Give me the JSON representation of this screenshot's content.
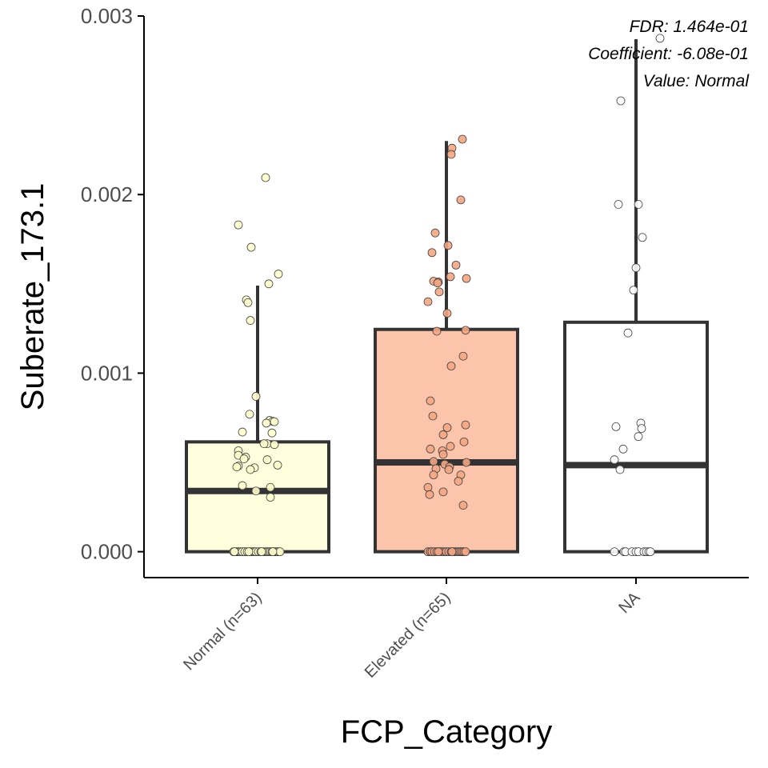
{
  "chart_data": {
    "type": "box",
    "xlabel": "FCP_Category",
    "ylabel": "Suberate_173.1",
    "ylim": [
      -0.000145,
      0.003
    ],
    "y_ticks": [
      "0.000",
      "0.001",
      "0.002",
      "0.003"
    ],
    "y_tick_values": [
      0,
      0.001,
      0.002,
      0.003
    ],
    "annotations": [
      "FDR: 1.464e-01",
      "Coefficient: -6.08e-01",
      "Value: Normal"
    ],
    "colors": {
      "axis": "#000000",
      "box_stroke": "#333333",
      "point_stroke": "#404040"
    },
    "categories": [
      {
        "label": "Normal (n=63)",
        "fill": "#ffffdd",
        "point_fill": "#ffffcc",
        "q1": 0,
        "median": 0.00034,
        "q3": 0.000615,
        "whisker_low": 0,
        "whisker_high": 0.00149,
        "points": [
          {
            "x": 0.1,
            "y": 0.002095
          },
          {
            "x": -0.24,
            "y": 0.00183
          },
          {
            "x": -0.08,
            "y": 0.001705
          },
          {
            "x": 0.26,
            "y": 0.001555
          },
          {
            "x": 0.14,
            "y": 0.0015
          },
          {
            "x": -0.14,
            "y": 0.00141
          },
          {
            "x": -0.12,
            "y": 0.001395
          },
          {
            "x": -0.09,
            "y": 0.001295
          },
          {
            "x": -0.02,
            "y": 0.00087
          },
          {
            "x": -0.1,
            "y": 0.00077
          },
          {
            "x": 0.15,
            "y": 0.000735
          },
          {
            "x": 0.19,
            "y": 0.00073
          },
          {
            "x": 0.21,
            "y": 0.000728
          },
          {
            "x": 0.11,
            "y": 0.00072
          },
          {
            "x": -0.19,
            "y": 0.00067
          },
          {
            "x": 0.18,
            "y": 0.000665
          },
          {
            "x": 0.12,
            "y": 0.000605
          },
          {
            "x": 0.08,
            "y": 0.000605
          },
          {
            "x": 0.21,
            "y": 0.0006
          },
          {
            "x": -0.24,
            "y": 0.000565
          },
          {
            "x": -0.24,
            "y": 0.00054
          },
          {
            "x": -0.15,
            "y": 0.00053
          },
          {
            "x": -0.17,
            "y": 0.00052
          },
          {
            "x": 0.12,
            "y": 0.000515
          },
          {
            "x": 0.25,
            "y": 0.000485
          },
          {
            "x": -0.24,
            "y": 0.00048
          },
          {
            "x": -0.26,
            "y": 0.000475
          },
          {
            "x": -0.04,
            "y": 0.00047
          },
          {
            "x": -0.09,
            "y": 0.00046
          },
          {
            "x": -0.19,
            "y": 0.00037
          },
          {
            "x": 0.16,
            "y": 0.00036
          },
          {
            "x": -0.02,
            "y": 0.00034
          },
          {
            "x": 0.16,
            "y": 0.000305
          },
          {
            "x": -0.3,
            "y": 0
          },
          {
            "x": -0.27,
            "y": 0
          },
          {
            "x": -0.25,
            "y": 0
          },
          {
            "x": -0.23,
            "y": 0
          },
          {
            "x": -0.21,
            "y": 0
          },
          {
            "x": -0.19,
            "y": 0
          },
          {
            "x": -0.16,
            "y": 0
          },
          {
            "x": -0.13,
            "y": 0
          },
          {
            "x": -0.1,
            "y": 0
          },
          {
            "x": -0.08,
            "y": 0
          },
          {
            "x": -0.06,
            "y": 0
          },
          {
            "x": -0.04,
            "y": 0
          },
          {
            "x": -0.02,
            "y": 0
          },
          {
            "x": 0.01,
            "y": 0
          },
          {
            "x": 0.04,
            "y": 0
          },
          {
            "x": 0.07,
            "y": 0
          },
          {
            "x": 0.1,
            "y": 0
          },
          {
            "x": 0.12,
            "y": 0
          },
          {
            "x": 0.14,
            "y": 0
          },
          {
            "x": 0.16,
            "y": 0
          },
          {
            "x": 0.18,
            "y": 0
          },
          {
            "x": 0.2,
            "y": 0
          },
          {
            "x": 0.22,
            "y": 0
          },
          {
            "x": 0.24,
            "y": 0
          },
          {
            "x": 0.26,
            "y": 0
          },
          {
            "x": 0.28,
            "y": 0
          },
          {
            "x": -0.29,
            "y": 0
          },
          {
            "x": -0.11,
            "y": 0
          },
          {
            "x": 0.05,
            "y": 0
          },
          {
            "x": 0.19,
            "y": 0
          }
        ]
      },
      {
        "label": "Elevated (n=65)",
        "fill": "#fcc5ab",
        "point_fill": "#f4a582",
        "q1": 0,
        "median": 0.0005,
        "q3": 0.001245,
        "whisker_low": 0,
        "whisker_high": 0.0023,
        "points": [
          {
            "x": 0.2,
            "y": 0.00231
          },
          {
            "x": 0.07,
            "y": 0.00226
          },
          {
            "x": 0.06,
            "y": 0.002225
          },
          {
            "x": 0.18,
            "y": 0.00197
          },
          {
            "x": -0.14,
            "y": 0.001785
          },
          {
            "x": 0.02,
            "y": 0.001715
          },
          {
            "x": -0.18,
            "y": 0.001675
          },
          {
            "x": 0.12,
            "y": 0.001605
          },
          {
            "x": 0.05,
            "y": 0.00154
          },
          {
            "x": 0.25,
            "y": 0.00153
          },
          {
            "x": -0.16,
            "y": 0.001515
          },
          {
            "x": -0.1,
            "y": 0.00151
          },
          {
            "x": -0.11,
            "y": 0.001505
          },
          {
            "x": -0.09,
            "y": 0.001455
          },
          {
            "x": -0.23,
            "y": 0.0014
          },
          {
            "x": 0.01,
            "y": 0.001335
          },
          {
            "x": 0.24,
            "y": 0.00124
          },
          {
            "x": -0.12,
            "y": 0.001235
          },
          {
            "x": 0.21,
            "y": 0.001095
          },
          {
            "x": 0.06,
            "y": 0.00104
          },
          {
            "x": -0.2,
            "y": 0.000845
          },
          {
            "x": -0.17,
            "y": 0.00076
          },
          {
            "x": 0.24,
            "y": 0.00071
          },
          {
            "x": 0.01,
            "y": 0.000695
          },
          {
            "x": -0.04,
            "y": 0.000655
          },
          {
            "x": 0.22,
            "y": 0.000615
          },
          {
            "x": 0.05,
            "y": 0.00059
          },
          {
            "x": -0.2,
            "y": 0.000575
          },
          {
            "x": -0.05,
            "y": 0.000565
          },
          {
            "x": -0.04,
            "y": 0.000545
          },
          {
            "x": -0.16,
            "y": 0.000505
          },
          {
            "x": 0.25,
            "y": 0.0005
          },
          {
            "x": -0.02,
            "y": 0.00049
          },
          {
            "x": 0.04,
            "y": 0.000475
          },
          {
            "x": 0.03,
            "y": 0.00046
          },
          {
            "x": -0.13,
            "y": 0.000465
          },
          {
            "x": -0.16,
            "y": 0.00043
          },
          {
            "x": 0.18,
            "y": 0.00043
          },
          {
            "x": 0.15,
            "y": 0.000395
          },
          {
            "x": -0.23,
            "y": 0.00036
          },
          {
            "x": -0.21,
            "y": 0.00032
          },
          {
            "x": -0.04,
            "y": 0.000335
          },
          {
            "x": 0.21,
            "y": 0.00026
          },
          {
            "x": -0.23,
            "y": 0
          },
          {
            "x": -0.2,
            "y": 0
          },
          {
            "x": -0.18,
            "y": 0
          },
          {
            "x": -0.15,
            "y": 0
          },
          {
            "x": -0.12,
            "y": 0
          },
          {
            "x": -0.09,
            "y": 0
          },
          {
            "x": -0.07,
            "y": 0
          },
          {
            "x": -0.05,
            "y": 0
          },
          {
            "x": -0.02,
            "y": 0
          },
          {
            "x": 0.0,
            "y": 0
          },
          {
            "x": 0.03,
            "y": 0
          },
          {
            "x": 0.06,
            "y": 0
          },
          {
            "x": 0.09,
            "y": 0
          },
          {
            "x": 0.12,
            "y": 0
          },
          {
            "x": 0.14,
            "y": 0
          },
          {
            "x": 0.16,
            "y": 0
          },
          {
            "x": 0.18,
            "y": 0
          },
          {
            "x": 0.2,
            "y": 0
          },
          {
            "x": 0.22,
            "y": 0
          },
          {
            "x": 0.24,
            "y": 0
          },
          {
            "x": -0.1,
            "y": 0
          },
          {
            "x": 0.07,
            "y": 0
          }
        ]
      },
      {
        "label": "NA",
        "fill": "#ffffff",
        "point_fill": "#ffffff",
        "q1": 0,
        "median": 0.000485,
        "q3": 0.001285,
        "whisker_low": 0,
        "whisker_high": 0.00287,
        "points": [
          {
            "x": 0.3,
            "y": 0.002875
          },
          {
            "x": -0.19,
            "y": 0.002525
          },
          {
            "x": -0.22,
            "y": 0.001945
          },
          {
            "x": 0.03,
            "y": 0.001945
          },
          {
            "x": 0.08,
            "y": 0.00176
          },
          {
            "x": 0.0,
            "y": 0.00159
          },
          {
            "x": -0.03,
            "y": 0.001465
          },
          {
            "x": -0.1,
            "y": 0.001225
          },
          {
            "x": 0.06,
            "y": 0.00072
          },
          {
            "x": -0.25,
            "y": 0.0007
          },
          {
            "x": 0.07,
            "y": 0.00069
          },
          {
            "x": 0.03,
            "y": 0.000645
          },
          {
            "x": -0.16,
            "y": 0.000575
          },
          {
            "x": -0.27,
            "y": 0.000515
          },
          {
            "x": -0.2,
            "y": 0.00046
          },
          {
            "x": -0.27,
            "y": 0
          },
          {
            "x": -0.15,
            "y": 0
          },
          {
            "x": -0.13,
            "y": 0
          },
          {
            "x": -0.05,
            "y": 0
          },
          {
            "x": 0.0,
            "y": 0
          },
          {
            "x": 0.03,
            "y": 0
          },
          {
            "x": 0.1,
            "y": 0
          },
          {
            "x": 0.13,
            "y": 0
          },
          {
            "x": 0.16,
            "y": 0
          },
          {
            "x": 0.18,
            "y": 0
          }
        ]
      }
    ]
  }
}
